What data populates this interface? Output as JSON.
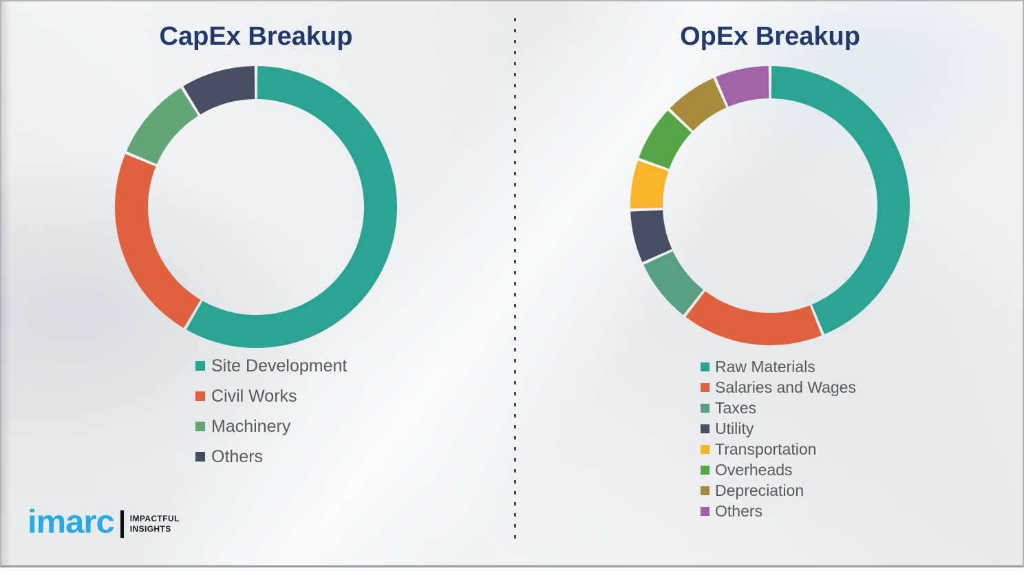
{
  "chart_data": [
    {
      "type": "pie",
      "subtype": "donut",
      "title": "CapEx Breakup",
      "labels": [
        "Site Development",
        "Civil Works",
        "Machinery",
        "Others"
      ],
      "values": [
        58.4,
        22.9,
        9.9,
        8.8
      ],
      "colors": [
        "#2aa393",
        "#e0613e",
        "#62a577",
        "#474e64"
      ],
      "start_angle_deg": 0,
      "direction": "clockwise",
      "data_labels_shown": false,
      "legend_position": "below-chart-left"
    },
    {
      "type": "pie",
      "subtype": "donut",
      "title": "OpEx Breakup",
      "labels": [
        "Raw Materials",
        "Salaries and Wages",
        "Taxes",
        "Utility",
        "Transportation",
        "Overheads",
        "Depreciation",
        "Others"
      ],
      "values": [
        43.8,
        16.7,
        7.7,
        6.3,
        5.9,
        6.7,
        6.4,
        6.5
      ],
      "colors": [
        "#2aa393",
        "#e0613e",
        "#56a081",
        "#474e64",
        "#f9b42c",
        "#55a546",
        "#a98b3d",
        "#a064a6"
      ],
      "start_angle_deg": 0,
      "direction": "clockwise",
      "data_labels_shown": false,
      "legend_position": "below-chart-left"
    }
  ],
  "logo": {
    "brand": "imarc",
    "tagline_line1": "IMPACTFUL",
    "tagline_line2": "INSIGHTS",
    "brand_color": "#29abe2"
  },
  "colors": {
    "title_text": "#24396b",
    "legend_text": "#595959",
    "divider": "#4c4c4c",
    "slide_background": "#f0f1f3"
  }
}
